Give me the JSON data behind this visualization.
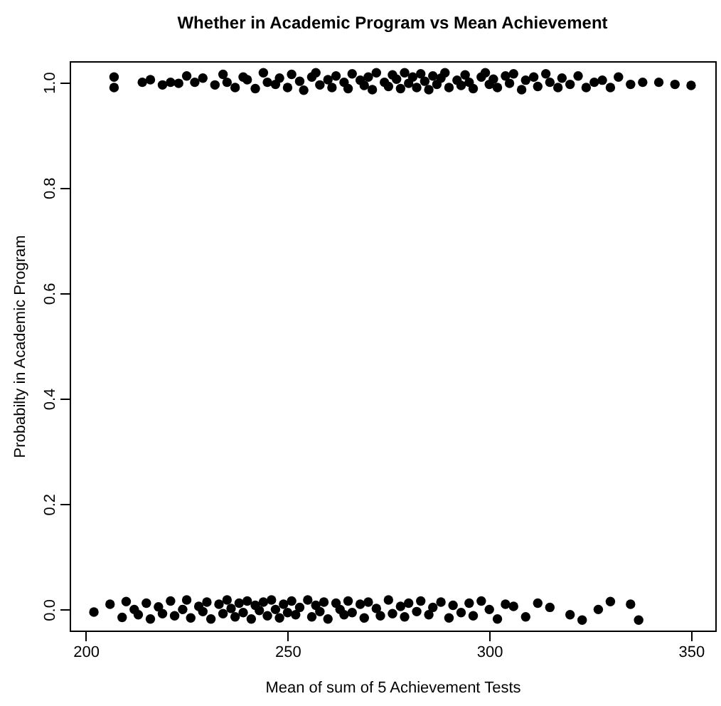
{
  "chart_data": {
    "type": "scatter",
    "title": "Whether in Academic Program vs Mean Achievement",
    "xlabel": "Mean of sum of 5 Achievement Tests",
    "ylabel": "Probabilty in Academic Program",
    "xlim": [
      196,
      356
    ],
    "xticks": [
      200,
      250,
      300,
      350
    ],
    "ylim": [
      -0.04,
      1.04
    ],
    "yticks": [
      {
        "value": 0,
        "label": "0.0"
      },
      {
        "value": 0.2,
        "label": "0.2"
      },
      {
        "value": 0.4,
        "label": "0.4"
      },
      {
        "value": 0.6,
        "label": "0.6"
      },
      {
        "value": 0.8,
        "label": "0.8"
      },
      {
        "value": 1,
        "label": "1.0"
      }
    ],
    "marker": "circle",
    "series": [
      {
        "color": "#000000",
        "x": [
          207,
          207,
          214,
          216,
          219,
          221,
          223,
          225,
          227,
          229,
          232,
          234,
          235,
          237,
          239,
          240,
          242,
          244,
          245,
          247,
          248,
          250,
          251,
          253,
          254,
          256,
          257,
          258,
          260,
          261,
          262,
          264,
          265,
          266,
          268,
          269,
          270,
          271,
          272,
          274,
          275,
          276,
          277,
          278,
          279,
          280,
          281,
          282,
          283,
          284,
          285,
          286,
          287,
          288,
          289,
          290,
          292,
          293,
          294,
          295,
          296,
          298,
          299,
          300,
          301,
          302,
          304,
          305,
          306,
          308,
          309,
          311,
          312,
          314,
          315,
          317,
          318,
          320,
          322,
          324,
          326,
          328,
          330,
          332,
          335,
          338,
          342,
          346,
          350
        ],
        "values": [
          1.01,
          0.99,
          1.0,
          1.005,
          0.995,
          1.0,
          0.998,
          1.012,
          1.0,
          1.008,
          0.995,
          1.015,
          1.0,
          0.99,
          1.01,
          1.005,
          0.988,
          1.018,
          1.0,
          0.996,
          1.008,
          0.99,
          1.015,
          1.002,
          0.985,
          1.01,
          1.018,
          0.995,
          1.005,
          0.99,
          1.012,
          1.0,
          0.988,
          1.016,
          1.004,
          0.994,
          1.01,
          0.986,
          1.018,
          1.0,
          0.992,
          1.014,
          1.006,
          0.988,
          1.018,
          0.998,
          1.01,
          0.99,
          1.016,
          1.002,
          0.986,
          1.012,
          0.996,
          1.008,
          1.018,
          0.99,
          1.004,
          0.994,
          1.014,
          1.0,
          0.988,
          1.01,
          1.018,
          0.996,
          1.006,
          0.99,
          1.012,
          0.998,
          1.016,
          0.986,
          1.004,
          1.01,
          0.992,
          1.016,
          1.0,
          0.99,
          1.008,
          0.996,
          1.012,
          0.99,
          1.0,
          1.004,
          0.99,
          1.01,
          0.996,
          1.0,
          1.0,
          0.996,
          0.994
        ]
      },
      {
        "color": "#000000",
        "x": [
          202,
          206,
          209,
          210,
          212,
          213,
          215,
          216,
          218,
          219,
          221,
          222,
          224,
          225,
          226,
          228,
          229,
          230,
          231,
          233,
          234,
          235,
          236,
          237,
          238,
          239,
          240,
          241,
          242,
          243,
          244,
          245,
          246,
          247,
          248,
          249,
          250,
          251,
          252,
          253,
          255,
          256,
          257,
          258,
          259,
          260,
          262,
          263,
          264,
          265,
          266,
          268,
          269,
          270,
          272,
          273,
          275,
          276,
          278,
          279,
          280,
          282,
          283,
          285,
          286,
          288,
          290,
          291,
          293,
          295,
          296,
          298,
          300,
          302,
          304,
          306,
          309,
          312,
          315,
          320,
          323,
          327,
          330,
          335,
          337
        ],
        "values": [
          -0.005,
          0.01,
          -0.015,
          0.015,
          0.0,
          -0.01,
          0.012,
          -0.018,
          0.005,
          -0.008,
          0.016,
          -0.012,
          0.0,
          0.018,
          -0.016,
          0.006,
          -0.004,
          0.014,
          -0.018,
          0.01,
          -0.008,
          0.018,
          0.002,
          -0.014,
          0.012,
          -0.006,
          0.016,
          -0.018,
          0.008,
          -0.002,
          0.014,
          -0.012,
          0.018,
          0.0,
          -0.016,
          0.01,
          -0.006,
          0.016,
          -0.01,
          0.004,
          0.018,
          -0.014,
          0.008,
          -0.004,
          0.014,
          -0.018,
          0.012,
          0.0,
          -0.01,
          0.016,
          -0.006,
          0.01,
          -0.016,
          0.014,
          0.002,
          -0.012,
          0.018,
          -0.008,
          0.006,
          -0.014,
          0.012,
          -0.004,
          0.016,
          -0.01,
          0.004,
          0.014,
          -0.016,
          0.008,
          -0.006,
          0.012,
          -0.012,
          0.016,
          0.0,
          -0.018,
          0.01,
          0.006,
          -0.014,
          0.012,
          0.004,
          -0.01,
          -0.02,
          0.0,
          0.015,
          0.01,
          -0.02
        ]
      }
    ]
  }
}
